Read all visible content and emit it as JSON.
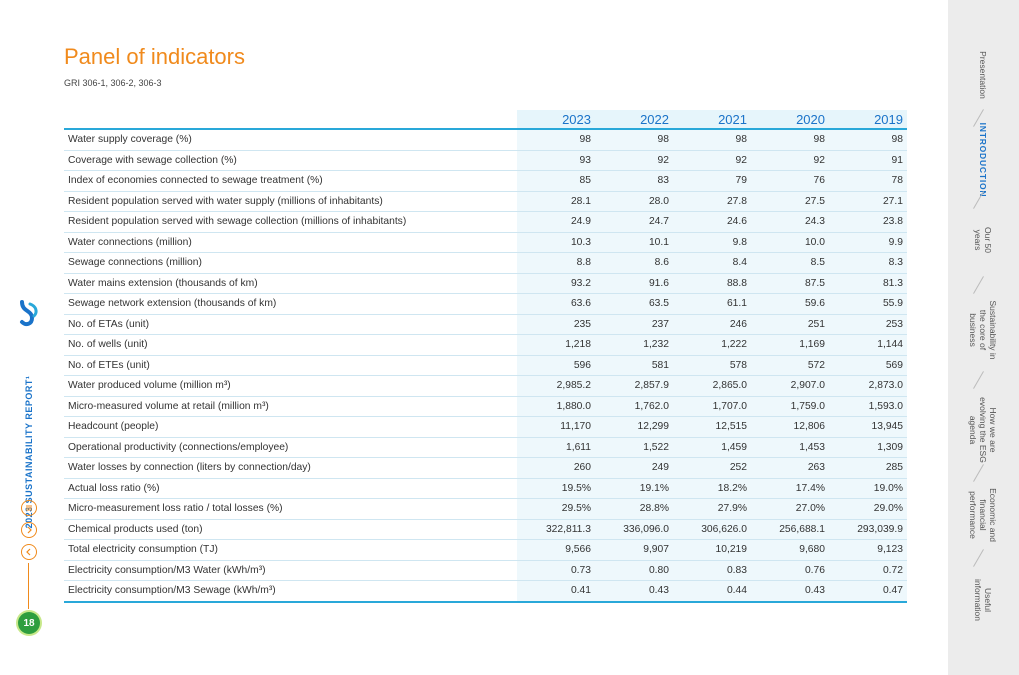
{
  "header": {
    "title": "Panel of indicators",
    "subtitle": "GRI 306-1, 306-2, 306-3"
  },
  "sidebar_left": {
    "report_label": "2023 SUSTAINABILITY REPORT¹",
    "page_number": "18",
    "icons": [
      "menu-icon",
      "next-icon",
      "previous-icon"
    ]
  },
  "table": {
    "years": [
      "2023",
      "2022",
      "2021",
      "2020",
      "2019"
    ],
    "rows": [
      {
        "label": "Water supply coverage (%)",
        "values": [
          "98",
          "98",
          "98",
          "98",
          "98"
        ]
      },
      {
        "label": "Coverage with sewage collection (%)",
        "values": [
          "93",
          "92",
          "92",
          "92",
          "91"
        ]
      },
      {
        "label": "Index of economies connected to sewage treatment (%)",
        "values": [
          "85",
          "83",
          "79",
          "76",
          "78"
        ]
      },
      {
        "label": "Resident population served with water supply (millions of inhabitants)",
        "values": [
          "28.1",
          "28.0",
          "27.8",
          "27.5",
          "27.1"
        ]
      },
      {
        "label": "Resident population served with sewage collection (millions of inhabitants)",
        "values": [
          "24.9",
          "24.7",
          "24.6",
          "24.3",
          "23.8"
        ]
      },
      {
        "label": "Water connections (million)",
        "values": [
          "10.3",
          "10.1",
          "9.8",
          "10.0",
          "9.9"
        ]
      },
      {
        "label": "Sewage connections (million)",
        "values": [
          "8.8",
          "8.6",
          "8.4",
          "8.5",
          "8.3"
        ]
      },
      {
        "label": "Water mains extension (thousands of km)",
        "values": [
          "93.2",
          "91.6",
          "88.8",
          "87.5",
          "81.3"
        ]
      },
      {
        "label": "Sewage network extension (thousands of km)",
        "values": [
          "63.6",
          "63.5",
          "61.1",
          "59.6",
          "55.9"
        ]
      },
      {
        "label": "No. of ETAs (unit)",
        "values": [
          "235",
          "237",
          "246",
          "251",
          "253"
        ]
      },
      {
        "label": "No. of wells (unit)",
        "values": [
          "1,218",
          "1,232",
          "1,222",
          "1,169",
          "1,144"
        ]
      },
      {
        "label": "No. of ETEs (unit)",
        "values": [
          "596",
          "581",
          "578",
          "572",
          "569"
        ]
      },
      {
        "label": "Water produced volume (million m³)",
        "values": [
          "2,985.2",
          "2,857.9",
          "2,865.0",
          "2,907.0",
          "2,873.0"
        ]
      },
      {
        "label": "Micro-measured volume at retail (million m³)",
        "values": [
          "1,880.0",
          "1,762.0",
          "1,707.0",
          "1,759.0",
          "1,593.0"
        ]
      },
      {
        "label": "Headcount (people)",
        "values": [
          "11,170",
          "12,299",
          "12,515",
          "12,806",
          "13,945"
        ]
      },
      {
        "label": "Operational productivity (connections/employee)",
        "values": [
          "1,611",
          "1,522",
          "1,459",
          "1,453",
          "1,309"
        ]
      },
      {
        "label": "Water losses by connection (liters by connection/day)",
        "values": [
          "260",
          "249",
          "252",
          "263",
          "285"
        ]
      },
      {
        "label": "Actual loss ratio (%)",
        "values": [
          "19.5%",
          "19.1%",
          "18.2%",
          "17.4%",
          "19.0%"
        ]
      },
      {
        "label": "Micro-measurement loss ratio / total losses (%)",
        "values": [
          "29.5%",
          "28.8%",
          "27.9%",
          "27.0%",
          "29.0%"
        ]
      },
      {
        "label": "Chemical products used (ton)",
        "values": [
          "322,811.3",
          "336,096.0",
          "306,626.0",
          "256,688.1",
          "293,039.9"
        ]
      },
      {
        "label": "Total electricity consumption (TJ)",
        "values": [
          "9,566",
          "9,907",
          "10,219",
          "9,680",
          "9,123"
        ]
      },
      {
        "label": "Electricity consumption/M3 Water (kWh/m³)",
        "values": [
          "0.73",
          "0.80",
          "0.83",
          "0.76",
          "0.72"
        ]
      },
      {
        "label": "Electricity consumption/M3 Sewage (kWh/m³)",
        "values": [
          "0.41",
          "0.43",
          "0.44",
          "0.43",
          "0.47"
        ]
      }
    ]
  },
  "nav": {
    "items": [
      {
        "label": "Presentation",
        "active": false
      },
      {
        "label": "INTRODUCTION",
        "active": true
      },
      {
        "label": "Our 50 years",
        "active": false
      },
      {
        "label": "Sustainability in the core of business",
        "active": false
      },
      {
        "label": "How we are evolving the ESG agenda",
        "active": false
      },
      {
        "label": "Economic and financial performance",
        "active": false
      },
      {
        "label": "Useful information",
        "active": false
      }
    ]
  },
  "colors": {
    "accent_orange": "#f08a1c",
    "accent_blue": "#1a73c9",
    "table_line": "#29a8d9",
    "page_badge": "#2e9e3f"
  }
}
